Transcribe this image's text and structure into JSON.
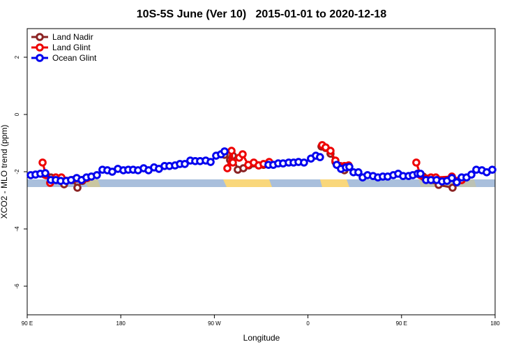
{
  "chart_data": {
    "type": "line",
    "title": "10S-5S June (Ver 10)   2015-01-01 to 2020-12-18",
    "x_label": "Longitude",
    "y_label": "XCO2 - MLO trend (ppm)",
    "xlim": [
      90,
      540
    ],
    "ylim": [
      -7,
      3
    ],
    "xticks": [
      {
        "value": 90,
        "label": "90 E"
      },
      180,
      {
        "value": 270,
        "label": "90 W"
      },
      {
        "value": 360,
        "label": "0"
      },
      {
        "value": 450,
        "label": "90 E"
      },
      {
        "value": 540,
        "label": "180"
      }
    ],
    "yticks": [
      -6,
      -4,
      -2,
      0,
      2
    ],
    "legend": "top-left",
    "series": [
      {
        "name": "Land Nadir",
        "color": "#8b2323",
        "x": [
          106.8,
          112.8,
          118.2,
          125.5,
          133.6,
          138.3,
          143.0,
          147.0,
          null,
          279.8,
          285.1,
          287.8,
          292.5,
          297.9,
          303.2,
          307.9,
          312.6,
          317.3,
          323.4,
          null,
          373.0,
          377.0,
          381.7,
          386.4,
          391.1,
          395.1,
          null,
          465.5,
          470.9,
          475.6,
          481.0,
          485.7,
          499.1,
          503.8,
          507.8
        ],
        "values": [
          -2.1,
          -2.2,
          -2.29,
          -2.44,
          -2.29,
          -2.56,
          -2.32,
          -2.22,
          null,
          -1.41,
          -1.59,
          -1.44,
          -1.93,
          -1.88,
          -1.78,
          -1.71,
          -1.78,
          -1.76,
          -1.71,
          null,
          -1.12,
          -1.17,
          -1.37,
          -1.66,
          -1.8,
          -1.95,
          null,
          -2.07,
          -2.17,
          -2.24,
          -2.29,
          -2.46,
          -2.56,
          -2.34,
          -2.29
        ]
      },
      {
        "name": "Land Glint",
        "color": "#ee0000",
        "x": [
          104.8,
          108.1,
          112.1,
          117.5,
          122.9,
          137.6,
          143.0,
          147.7,
          null,
          282.5,
          286.5,
          287.8,
          293.9,
          297.2,
          302.6,
          307.9,
          312.6,
          317.3,
          322.7,
          null,
          373.7,
          377.0,
          381.7,
          386.4,
          390.4,
          395.1,
          399.1,
          null,
          464.2,
          468.2,
          472.9,
          478.3,
          483.0,
          498.4,
          503.1,
          507.8
        ],
        "values": [
          -1.68,
          -2.12,
          -2.39,
          -2.2,
          -2.2,
          -2.24,
          -2.29,
          -2.22,
          null,
          -1.88,
          -1.27,
          -1.68,
          -1.51,
          -1.39,
          -1.76,
          -1.68,
          -1.78,
          -1.73,
          -1.66,
          null,
          -1.07,
          -1.15,
          -1.27,
          -1.61,
          -1.8,
          -1.8,
          -1.78,
          null,
          -1.68,
          -2.12,
          -2.24,
          -2.2,
          -2.2,
          -2.17,
          -2.32,
          -2.29
        ]
      },
      {
        "name": "Ocean Glint",
        "color": "#0000ee",
        "x": [
          93.4,
          98.0,
          102.7,
          107.4,
          112.8,
          117.5,
          122.2,
          127.5,
          132.2,
          137.6,
          142.3,
          147.0,
          151.7,
          157.0,
          162.4,
          167.1,
          171.8,
          177.2,
          182.5,
          187.2,
          191.9,
          196.6,
          202.0,
          206.7,
          212.0,
          216.7,
          222.1,
          226.8,
          232.2,
          236.9,
          241.6,
          246.9,
          251.6,
          256.3,
          261.7,
          266.4,
          271.7,
          276.4,
          279.8,
          null,
          322.0,
          326.7,
          331.4,
          336.1,
          341.5,
          346.2,
          350.9,
          356.2,
          362.9,
          367.6,
          371.6,
          null,
          387.7,
          391.8,
          396.5,
          399.8,
          403.8,
          408.5,
          412.6,
          417.3,
          422.6,
          427.3,
          432.0,
          436.7,
          442.1,
          446.8,
          451.5,
          456.8,
          460.9,
          465.5,
          468.2,
          473.6,
          478.3,
          483.7,
          489.0,
          493.7,
          498.4,
          503.1,
          507.8,
          512.5,
          517.2,
          521.9,
          527.3,
          531.9,
          537.3
        ],
        "values": [
          -2.12,
          -2.1,
          -2.07,
          -2.05,
          -2.29,
          -2.29,
          -2.32,
          -2.32,
          -2.29,
          -2.22,
          -2.29,
          -2.2,
          -2.17,
          -2.12,
          -1.93,
          -1.95,
          -2.0,
          -1.9,
          -1.95,
          -1.93,
          -1.93,
          -1.95,
          -1.88,
          -1.95,
          -1.85,
          -1.9,
          -1.8,
          -1.8,
          -1.78,
          -1.73,
          -1.73,
          -1.61,
          -1.63,
          -1.63,
          -1.61,
          -1.66,
          -1.44,
          -1.39,
          -1.29,
          null,
          -1.76,
          -1.76,
          -1.71,
          -1.71,
          -1.68,
          -1.68,
          -1.66,
          -1.68,
          -1.54,
          -1.44,
          -1.49,
          null,
          -1.76,
          -1.9,
          -1.85,
          -1.83,
          -2.02,
          -2.02,
          -2.2,
          -2.12,
          -2.15,
          -2.2,
          -2.17,
          -2.17,
          -2.12,
          -2.07,
          -2.15,
          -2.15,
          -2.12,
          -2.07,
          -2.07,
          -2.29,
          -2.29,
          -2.29,
          -2.34,
          -2.32,
          -2.22,
          -2.37,
          -2.2,
          -2.2,
          -2.1,
          -1.93,
          -1.95,
          -2.02,
          -1.93
        ]
      }
    ]
  }
}
